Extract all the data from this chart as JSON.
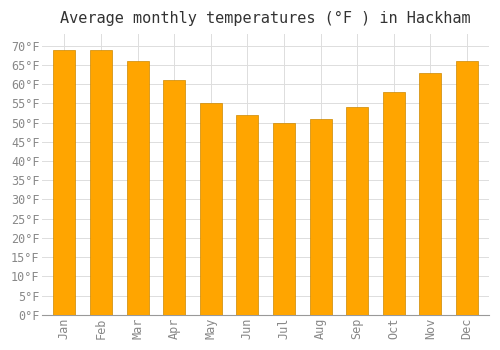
{
  "title": "Average monthly temperatures (°F ) in Hackham",
  "months": [
    "Jan",
    "Feb",
    "Mar",
    "Apr",
    "May",
    "Jun",
    "Jul",
    "Aug",
    "Sep",
    "Oct",
    "Nov",
    "Dec"
  ],
  "values": [
    69,
    69,
    66,
    61,
    55,
    52,
    50,
    51,
    54,
    58,
    63,
    66
  ],
  "bar_color": "#FFA500",
  "bar_edge_color": "#CC8800",
  "background_color": "#FFFFFF",
  "grid_color": "#DDDDDD",
  "text_color": "#333333",
  "tick_color": "#888888",
  "ylim": [
    0,
    73
  ],
  "yticks": [
    0,
    5,
    10,
    15,
    20,
    25,
    30,
    35,
    40,
    45,
    50,
    55,
    60,
    65,
    70
  ],
  "title_fontsize": 11,
  "tick_fontsize": 8.5,
  "bar_width": 0.6
}
